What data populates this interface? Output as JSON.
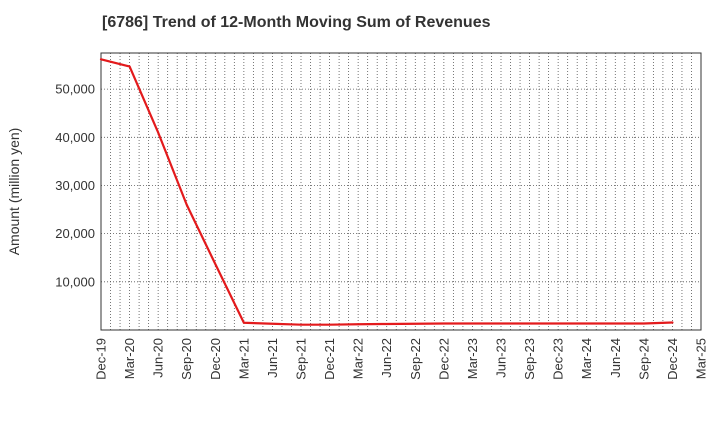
{
  "chart_data": {
    "type": "line",
    "title": "[6786]  Trend of 12-Month Moving Sum of Revenues",
    "xlabel": "",
    "ylabel": "Amount (million yen)",
    "x_ticks": [
      "Dec-19",
      "Mar-20",
      "Jun-20",
      "Sep-20",
      "Dec-20",
      "Mar-21",
      "Jun-21",
      "Sep-21",
      "Dec-21",
      "Mar-22",
      "Jun-22",
      "Sep-22",
      "Dec-22",
      "Mar-23",
      "Jun-23",
      "Sep-23",
      "Dec-23",
      "Mar-24",
      "Jun-24",
      "Sep-24",
      "Dec-24",
      "Mar-25"
    ],
    "y_ticks": [
      10000,
      20000,
      30000,
      40000,
      50000
    ],
    "y_tick_labels": [
      "10,000",
      "20,000",
      "30,000",
      "40,000",
      "50,000"
    ],
    "ylim": [
      0,
      57500
    ],
    "grid": true,
    "series": [
      {
        "color": "#e31a1c",
        "x": [
          "Dec-19",
          "Mar-20",
          "Jun-20",
          "Sep-20",
          "Dec-20",
          "Mar-21",
          "Jun-21",
          "Sep-21",
          "Dec-21",
          "Mar-22",
          "Jun-22",
          "Sep-22",
          "Dec-22",
          "Mar-23",
          "Jun-23",
          "Sep-23",
          "Dec-23",
          "Mar-24",
          "Jun-24",
          "Sep-24",
          "Dec-24"
        ],
        "values": [
          56200,
          54700,
          41000,
          26000,
          13700,
          1500,
          1300,
          1100,
          1100,
          1200,
          1250,
          1300,
          1350,
          1350,
          1350,
          1350,
          1350,
          1350,
          1350,
          1350,
          1550
        ]
      }
    ]
  }
}
